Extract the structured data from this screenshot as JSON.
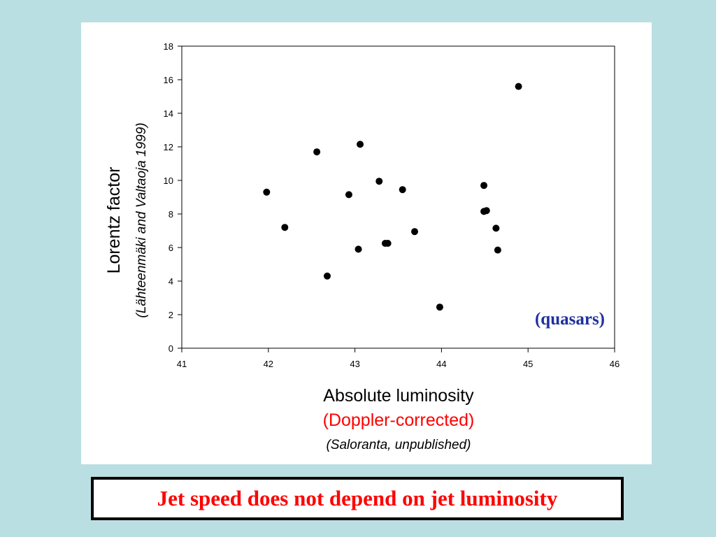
{
  "slide": {
    "background_color": "#b9dfe3",
    "caption": "Jet speed does not depend on jet luminosity",
    "caption_color": "#ff0000"
  },
  "chart_data": {
    "type": "scatter",
    "xlabel": "Absolute luminosity",
    "xlabel_sub": "(Doppler-corrected)",
    "xlabel_sub_color": "#ff0000",
    "xlabel_credit": "(Saloranta, unpublished)",
    "ylabel": "Lorentz factor",
    "ylabel_sub": "(Lähteenmäki and Valtaoja 1999)",
    "annotation": "(quasars)",
    "annotation_color": "#1f2fa0",
    "marker_color": "#000000",
    "grid": false,
    "xlim": [
      41,
      46
    ],
    "ylim": [
      0,
      18
    ],
    "x_ticks": [
      "41",
      "42",
      "43",
      "44",
      "45",
      "46"
    ],
    "y_ticks": [
      "0",
      "2",
      "4",
      "6",
      "8",
      "10",
      "12",
      "14",
      "16",
      "18"
    ],
    "points": [
      {
        "x": 41.98,
        "y": 9.3
      },
      {
        "x": 42.19,
        "y": 7.2
      },
      {
        "x": 42.56,
        "y": 11.7
      },
      {
        "x": 42.68,
        "y": 4.3
      },
      {
        "x": 42.93,
        "y": 9.15
      },
      {
        "x": 43.04,
        "y": 5.9
      },
      {
        "x": 43.06,
        "y": 12.15
      },
      {
        "x": 43.28,
        "y": 9.95
      },
      {
        "x": 43.35,
        "y": 6.25
      },
      {
        "x": 43.38,
        "y": 6.25
      },
      {
        "x": 43.55,
        "y": 9.45
      },
      {
        "x": 43.69,
        "y": 6.95
      },
      {
        "x": 43.98,
        "y": 2.45
      },
      {
        "x": 44.49,
        "y": 9.7
      },
      {
        "x": 44.49,
        "y": 8.15
      },
      {
        "x": 44.52,
        "y": 8.2
      },
      {
        "x": 44.63,
        "y": 7.15
      },
      {
        "x": 44.65,
        "y": 5.85
      },
      {
        "x": 44.89,
        "y": 15.6
      }
    ]
  }
}
